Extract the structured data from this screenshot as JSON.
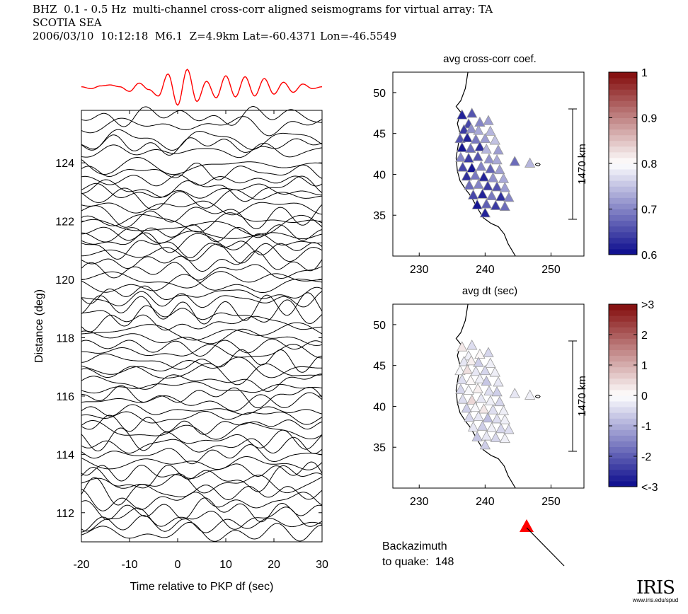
{
  "header": {
    "line1": "BHZ  0.1 - 0.5 Hz  multi-channel cross-corr aligned seismograms for virtual array: TA",
    "line2": "SCOTIA SEA",
    "line3": "2006/03/10  10:12:18  M6.1  Z=4.9km Lat=-60.4371 Lon=-46.5549"
  },
  "chart_data": [
    {
      "type": "line",
      "title": "",
      "xlabel": "Time relative to PKP df (sec)",
      "ylabel": "Distance (deg)",
      "xlim": [
        -20,
        30
      ],
      "ylim": [
        111,
        125.8
      ],
      "xticks": [
        -20,
        -10,
        0,
        10,
        20,
        30
      ],
      "yticks": [
        112,
        114,
        116,
        118,
        120,
        122,
        124
      ],
      "xtick_labels": [
        "-20",
        "-10",
        "0",
        "10",
        "20",
        "30"
      ],
      "ytick_labels": [
        "112",
        "114",
        "116",
        "118",
        "120",
        "122",
        "124"
      ],
      "stack_color": "#ff0000",
      "stack_x": [
        -20,
        -18,
        -16,
        -14,
        -12,
        -10,
        -8,
        -6,
        -4,
        -2,
        0,
        2,
        4,
        6,
        8,
        10,
        12,
        14,
        16,
        18,
        20,
        22,
        24,
        26,
        28,
        30
      ],
      "stack_y": [
        0.05,
        -0.05,
        0.1,
        0.15,
        0.05,
        -0.2,
        0.25,
        -0.1,
        -0.45,
        0.75,
        -0.95,
        1.0,
        -0.75,
        0.35,
        -0.55,
        0.65,
        -0.5,
        0.6,
        -0.45,
        0.5,
        -0.35,
        0.3,
        -0.25,
        0.2,
        -0.05,
        0.05
      ],
      "trace_distances": [
        125.6,
        125.3,
        124.8,
        124.6,
        124.4,
        123.9,
        123.7,
        123.4,
        123.1,
        123.0,
        122.8,
        122.5,
        122.2,
        122.0,
        121.8,
        121.6,
        121.5,
        121.3,
        121.1,
        120.9,
        120.6,
        120.3,
        120.0,
        119.8,
        119.5,
        119.3,
        119.0,
        118.8,
        118.5,
        118.2,
        118.0,
        117.7,
        117.5,
        117.2,
        117.0,
        116.8,
        116.5,
        116.3,
        116.0,
        115.8,
        115.5,
        115.3,
        115.0,
        114.8,
        114.5,
        114.3,
        114.0,
        113.7,
        113.4,
        113.2,
        113.0,
        112.7,
        112.4,
        112.1,
        111.8,
        111.6,
        111.3
      ]
    },
    {
      "type": "scatter",
      "title": "avg cross-corr coef.",
      "xlim": [
        226,
        255
      ],
      "ylim": [
        30,
        52.5
      ],
      "xticks": [
        230,
        240,
        250
      ],
      "yticks": [
        35,
        40,
        45,
        50
      ],
      "xtick_labels": [
        "230",
        "240",
        "250"
      ],
      "ytick_labels": [
        "35",
        "40",
        "45",
        "50"
      ],
      "scale_label": "1470 km",
      "colorbar": {
        "min": 0.6,
        "max": 1,
        "ticks": [
          0.6,
          0.7,
          0.8,
          0.9,
          1
        ],
        "tick_labels": [
          "0.6",
          "0.7",
          "0.8",
          "0.9",
          "1"
        ]
      },
      "station_lon": [
        236.5,
        238.0,
        237.5,
        239.2,
        240.5,
        236.8,
        237.9,
        239.0,
        240.8,
        236.2,
        237.3,
        238.6,
        240.0,
        241.5,
        236.5,
        237.8,
        239.2,
        240.2,
        242.0,
        236.3,
        237.5,
        238.9,
        240.6,
        241.8,
        244.5,
        246.8,
        236.6,
        238.0,
        239.4,
        240.8,
        242.2,
        237.2,
        238.5,
        239.8,
        241.2,
        242.8,
        237.6,
        239.0,
        240.4,
        241.8,
        243.0,
        238.2,
        239.6,
        241.0,
        242.4,
        243.6,
        238.8,
        240.2,
        241.6,
        243.0,
        240.0
      ],
      "station_lat": [
        47.2,
        47.4,
        46.1,
        46.3,
        46.5,
        45.4,
        45.5,
        45.3,
        45.2,
        44.3,
        44.4,
        44.2,
        44.3,
        44.1,
        43.2,
        43.1,
        43.3,
        43.0,
        42.9,
        42.0,
        41.9,
        42.1,
        41.8,
        41.7,
        41.5,
        41.3,
        40.8,
        40.7,
        40.9,
        40.6,
        40.5,
        39.7,
        39.8,
        39.6,
        39.5,
        39.4,
        38.6,
        38.7,
        38.5,
        38.4,
        38.3,
        37.4,
        37.5,
        37.3,
        37.2,
        37.1,
        36.2,
        36.3,
        36.1,
        36.0,
        35.2
      ],
      "station_value": [
        0.62,
        0.66,
        0.65,
        0.7,
        0.72,
        0.64,
        0.71,
        0.73,
        0.74,
        0.66,
        0.62,
        0.69,
        0.72,
        0.75,
        0.61,
        0.68,
        0.63,
        0.74,
        0.72,
        0.7,
        0.64,
        0.66,
        0.71,
        0.73,
        0.68,
        0.74,
        0.65,
        0.61,
        0.7,
        0.67,
        0.72,
        0.63,
        0.69,
        0.62,
        0.71,
        0.73,
        0.68,
        0.7,
        0.64,
        0.66,
        0.72,
        0.65,
        0.62,
        0.69,
        0.63,
        0.7,
        0.61,
        0.67,
        0.64,
        0.68,
        0.62
      ]
    },
    {
      "type": "scatter",
      "title": "avg dt (sec)",
      "xlim": [
        226,
        255
      ],
      "ylim": [
        30,
        52.5
      ],
      "xticks": [
        230,
        240,
        250
      ],
      "yticks": [
        35,
        40,
        45,
        50
      ],
      "xtick_labels": [
        "230",
        "240",
        "250"
      ],
      "ytick_labels": [
        "35",
        "40",
        "45",
        "50"
      ],
      "scale_label": "1470 km",
      "colorbar": {
        "min": -3,
        "max": 3,
        "ticks": [
          -3,
          -2,
          -1,
          0,
          1,
          2,
          3
        ],
        "tick_labels": [
          "<-3",
          "-2",
          "-1",
          "0",
          "1",
          "2",
          ">3"
        ]
      },
      "station_lon": [
        236.5,
        238.0,
        237.5,
        239.2,
        240.5,
        236.8,
        237.9,
        239.0,
        240.8,
        236.2,
        237.3,
        238.6,
        240.0,
        241.5,
        236.5,
        237.8,
        239.2,
        240.2,
        242.0,
        236.3,
        237.5,
        238.9,
        240.6,
        241.8,
        244.5,
        246.8,
        236.6,
        238.0,
        239.4,
        240.8,
        242.2,
        237.2,
        238.5,
        239.8,
        241.2,
        242.8,
        237.6,
        239.0,
        240.4,
        241.8,
        243.0,
        238.2,
        239.6,
        241.0,
        242.4,
        243.6,
        238.8,
        240.2,
        241.6,
        243.0,
        240.0
      ],
      "station_lat": [
        47.2,
        47.4,
        46.1,
        46.3,
        46.5,
        45.4,
        45.5,
        45.3,
        45.2,
        44.3,
        44.4,
        44.2,
        44.3,
        44.1,
        43.2,
        43.1,
        43.3,
        43.0,
        42.9,
        42.0,
        41.9,
        42.1,
        41.8,
        41.7,
        41.5,
        41.3,
        40.8,
        40.7,
        40.9,
        40.6,
        40.5,
        39.7,
        39.8,
        39.6,
        39.5,
        39.4,
        38.6,
        38.7,
        38.5,
        38.4,
        38.3,
        37.4,
        37.5,
        37.3,
        37.2,
        37.1,
        36.2,
        36.3,
        36.1,
        36.0,
        35.2
      ],
      "station_value": [
        0.3,
        -0.4,
        -0.2,
        0.1,
        -0.5,
        -0.3,
        0.2,
        -0.6,
        -0.2,
        -0.1,
        0.4,
        -0.3,
        -0.5,
        -0.2,
        -0.4,
        0.1,
        -0.2,
        -0.7,
        -0.3,
        -0.5,
        -0.1,
        0.2,
        -0.4,
        -0.6,
        -0.3,
        -0.2,
        -0.4,
        0.5,
        -0.3,
        -0.2,
        -0.5,
        -0.6,
        -0.1,
        0.3,
        -0.4,
        -0.2,
        -0.5,
        -0.3,
        -0.8,
        -0.4,
        -0.2,
        -0.3,
        -0.6,
        -0.2,
        -0.5,
        -0.4,
        -0.7,
        -0.3,
        -0.5,
        -0.2,
        -0.6
      ]
    }
  ],
  "backazimuth": {
    "line1": "Backazimuth",
    "line2_label": "to quake:",
    "value": "148",
    "arrow_color": "#ff0000"
  },
  "logo": {
    "name": "IRIS",
    "url": "www.iris.edu/spud"
  }
}
